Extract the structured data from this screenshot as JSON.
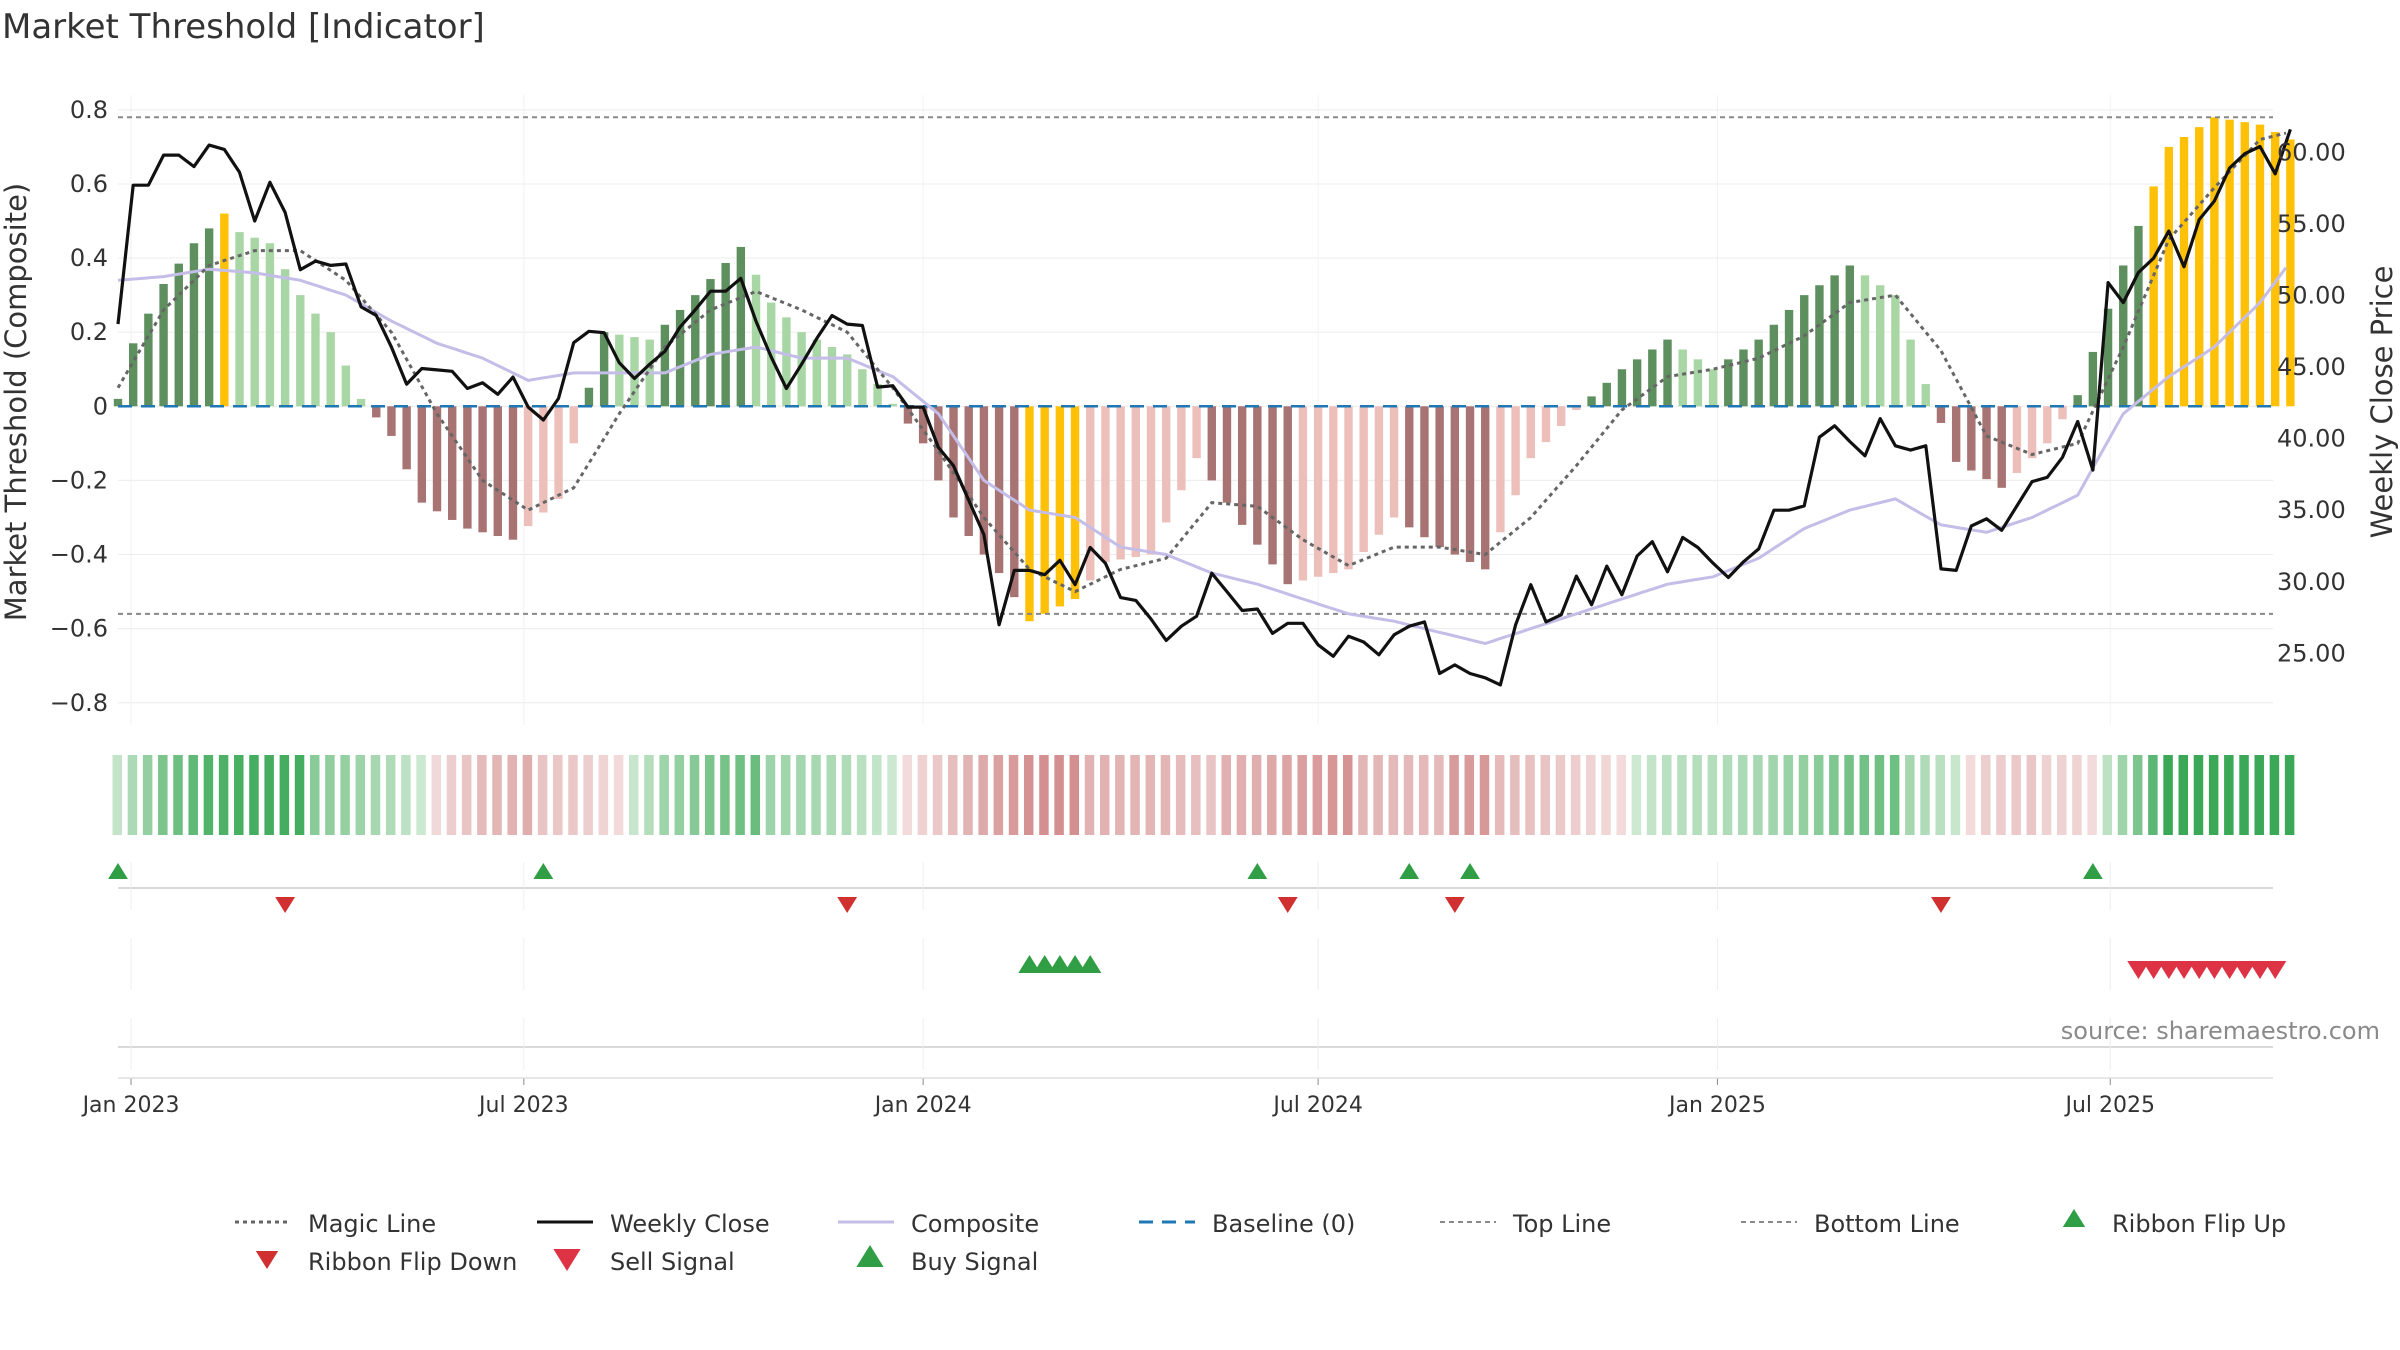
{
  "chart_data": {
    "type": "line",
    "title": "Market Threshold [Indicator]",
    "ylabel": "Market Threshold (Composite)",
    "y2label": "Weekly Close Price",
    "ylim": [
      -0.86,
      0.84
    ],
    "y2lim": [
      20.0,
      64.0
    ],
    "yticks": [
      0.8,
      0.6,
      0.4,
      0.2,
      0,
      -0.2,
      -0.4,
      -0.6,
      -0.8
    ],
    "ytick_labels": [
      "0.8",
      "0.6",
      "0.4",
      "0.2",
      "0",
      "−0.2",
      "−0.4",
      "−0.6",
      "−0.8"
    ],
    "y2ticks": [
      60,
      55,
      50,
      45,
      40,
      35,
      30,
      25
    ],
    "y2tick_labels": [
      "60.00",
      "55.00",
      "50.00",
      "45.00",
      "40.00",
      "35.00",
      "30.00",
      "25.00"
    ],
    "xrange": [
      "2022-12-26",
      "2025-09-14"
    ],
    "xticks": [
      "2023-01-01",
      "2023-07-01",
      "2024-01-01",
      "2024-07-01",
      "2025-01-01",
      "2025-07-01"
    ],
    "xtick_labels": [
      "Jan 2023",
      "Jul 2023",
      "Jan 2024",
      "Jul 2024",
      "Jan 2025",
      "Jul 2025"
    ],
    "top_line": 0.78,
    "bottom_line": -0.56,
    "weekly_close_anchors": [
      [
        "2022-12-26",
        48.0
      ],
      [
        "2023-01-02",
        57.7
      ],
      [
        "2023-01-09",
        57.7
      ],
      [
        "2023-01-16",
        59.8
      ],
      [
        "2023-01-23",
        59.8
      ],
      [
        "2023-01-30",
        59.0
      ],
      [
        "2023-02-06",
        60.5
      ],
      [
        "2023-02-13",
        60.2
      ],
      [
        "2023-02-20",
        58.6
      ],
      [
        "2023-02-27",
        55.2
      ],
      [
        "2023-03-06",
        57.9
      ],
      [
        "2023-03-13",
        55.8
      ],
      [
        "2023-03-20",
        51.8
      ],
      [
        "2023-03-27",
        52.4
      ],
      [
        "2023-04-03",
        52.1
      ],
      [
        "2023-04-10",
        52.2
      ],
      [
        "2023-04-17",
        49.2
      ],
      [
        "2023-04-24",
        48.6
      ],
      [
        "2023-05-01",
        46.4
      ],
      [
        "2023-05-08",
        43.8
      ],
      [
        "2023-05-15",
        44.9
      ],
      [
        "2023-05-22",
        44.8
      ],
      [
        "2023-05-29",
        44.7
      ],
      [
        "2023-06-05",
        43.5
      ],
      [
        "2023-06-12",
        43.9
      ],
      [
        "2023-06-19",
        43.1
      ],
      [
        "2023-06-26",
        44.3
      ],
      [
        "2023-07-03",
        42.2
      ],
      [
        "2023-07-10",
        41.3
      ],
      [
        "2023-07-17",
        42.8
      ],
      [
        "2023-07-24",
        46.7
      ],
      [
        "2023-07-31",
        47.5
      ],
      [
        "2023-08-07",
        47.4
      ],
      [
        "2023-08-14",
        45.3
      ],
      [
        "2023-08-21",
        44.2
      ],
      [
        "2023-08-28",
        45.2
      ],
      [
        "2023-09-04",
        46.1
      ],
      [
        "2023-09-11",
        47.8
      ],
      [
        "2023-09-18",
        49.0
      ],
      [
        "2023-09-25",
        50.3
      ],
      [
        "2023-10-02",
        50.3
      ],
      [
        "2023-10-09",
        51.2
      ],
      [
        "2023-10-16",
        48.2
      ],
      [
        "2023-10-23",
        45.7
      ],
      [
        "2023-10-30",
        43.5
      ],
      [
        "2023-11-06",
        45.2
      ],
      [
        "2023-11-13",
        47.0
      ],
      [
        "2023-11-20",
        48.6
      ],
      [
        "2023-11-27",
        48.0
      ],
      [
        "2023-12-04",
        47.9
      ],
      [
        "2023-12-11",
        43.6
      ],
      [
        "2023-12-18",
        43.7
      ],
      [
        "2023-12-25",
        42.2
      ],
      [
        "2024-01-01",
        42.2
      ],
      [
        "2024-01-08",
        39.4
      ],
      [
        "2024-01-15",
        38.1
      ],
      [
        "2024-01-22",
        35.7
      ],
      [
        "2024-01-29",
        33.3
      ],
      [
        "2024-02-05",
        27.0
      ],
      [
        "2024-02-12",
        30.8
      ],
      [
        "2024-02-19",
        30.8
      ],
      [
        "2024-02-26",
        30.5
      ],
      [
        "2024-03-04",
        31.5
      ],
      [
        "2024-03-11",
        29.8
      ],
      [
        "2024-03-18",
        32.4
      ],
      [
        "2024-03-25",
        31.3
      ],
      [
        "2024-04-01",
        28.9
      ],
      [
        "2024-04-08",
        28.7
      ],
      [
        "2024-04-15",
        27.4
      ],
      [
        "2024-04-22",
        25.9
      ],
      [
        "2024-04-29",
        26.9
      ],
      [
        "2024-05-06",
        27.6
      ],
      [
        "2024-05-13",
        30.6
      ],
      [
        "2024-05-20",
        29.3
      ],
      [
        "2024-05-27",
        28.0
      ],
      [
        "2024-06-03",
        28.1
      ],
      [
        "2024-06-10",
        26.4
      ],
      [
        "2024-06-17",
        27.1
      ],
      [
        "2024-06-24",
        27.1
      ],
      [
        "2024-07-01",
        25.6
      ],
      [
        "2024-07-08",
        24.8
      ],
      [
        "2024-07-15",
        26.2
      ],
      [
        "2024-07-22",
        25.8
      ],
      [
        "2024-07-29",
        24.9
      ],
      [
        "2024-08-05",
        26.3
      ],
      [
        "2024-08-12",
        26.9
      ],
      [
        "2024-08-19",
        27.2
      ],
      [
        "2024-08-26",
        23.6
      ],
      [
        "2024-09-02",
        24.2
      ],
      [
        "2024-09-09",
        23.6
      ],
      [
        "2024-09-16",
        23.3
      ],
      [
        "2024-09-23",
        22.8
      ],
      [
        "2024-09-30",
        27.0
      ],
      [
        "2024-10-07",
        29.8
      ],
      [
        "2024-10-14",
        27.2
      ],
      [
        "2024-10-21",
        27.7
      ],
      [
        "2024-10-28",
        30.4
      ],
      [
        "2024-11-04",
        28.4
      ],
      [
        "2024-11-11",
        31.1
      ],
      [
        "2024-11-18",
        29.1
      ],
      [
        "2024-11-25",
        31.8
      ],
      [
        "2024-12-02",
        32.8
      ],
      [
        "2024-12-09",
        30.7
      ],
      [
        "2024-12-16",
        33.1
      ],
      [
        "2024-12-23",
        32.4
      ],
      [
        "2024-12-30",
        31.3
      ],
      [
        "2025-01-06",
        30.3
      ],
      [
        "2025-01-13",
        31.4
      ],
      [
        "2025-01-20",
        32.3
      ],
      [
        "2025-01-27",
        35.0
      ],
      [
        "2025-02-03",
        35.0
      ],
      [
        "2025-02-10",
        35.3
      ],
      [
        "2025-02-17",
        40.1
      ],
      [
        "2025-02-24",
        40.9
      ],
      [
        "2025-03-03",
        39.8
      ],
      [
        "2025-03-10",
        38.8
      ],
      [
        "2025-03-17",
        41.4
      ],
      [
        "2025-03-24",
        39.5
      ],
      [
        "2025-03-31",
        39.2
      ],
      [
        "2025-04-07",
        39.5
      ],
      [
        "2025-04-14",
        30.9
      ],
      [
        "2025-04-21",
        30.8
      ],
      [
        "2025-04-28",
        33.9
      ],
      [
        "2025-05-05",
        34.4
      ],
      [
        "2025-05-12",
        33.6
      ],
      [
        "2025-05-19",
        35.3
      ],
      [
        "2025-05-26",
        37.0
      ],
      [
        "2025-06-02",
        37.3
      ],
      [
        "2025-06-09",
        38.7
      ],
      [
        "2025-06-16",
        41.2
      ],
      [
        "2025-06-23",
        37.8
      ],
      [
        "2025-06-30",
        50.9
      ],
      [
        "2025-07-07",
        49.5
      ],
      [
        "2025-07-14",
        51.6
      ],
      [
        "2025-07-21",
        52.6
      ],
      [
        "2025-07-28",
        54.5
      ],
      [
        "2025-08-04",
        52.0
      ],
      [
        "2025-08-11",
        55.3
      ],
      [
        "2025-08-18",
        56.6
      ],
      [
        "2025-08-25",
        58.9
      ],
      [
        "2025-09-01",
        59.9
      ],
      [
        "2025-09-08",
        60.4
      ],
      [
        "2025-09-15",
        58.5
      ],
      [
        "2025-09-22",
        61.6
      ]
    ],
    "composite_anchors": [
      [
        "2022-12-26",
        0.34
      ],
      [
        "2023-01-16",
        0.35
      ],
      [
        "2023-02-06",
        0.37
      ],
      [
        "2023-02-27",
        0.36
      ],
      [
        "2023-03-20",
        0.34
      ],
      [
        "2023-04-10",
        0.3
      ],
      [
        "2023-05-01",
        0.23
      ],
      [
        "2023-05-22",
        0.17
      ],
      [
        "2023-06-12",
        0.13
      ],
      [
        "2023-07-03",
        0.07
      ],
      [
        "2023-07-24",
        0.09
      ],
      [
        "2023-08-14",
        0.09
      ],
      [
        "2023-09-04",
        0.09
      ],
      [
        "2023-09-25",
        0.14
      ],
      [
        "2023-10-16",
        0.16
      ],
      [
        "2023-11-06",
        0.13
      ],
      [
        "2023-11-27",
        0.13
      ],
      [
        "2023-12-18",
        0.08
      ],
      [
        "2024-01-08",
        -0.02
      ],
      [
        "2024-01-29",
        -0.2
      ],
      [
        "2024-02-19",
        -0.28
      ],
      [
        "2024-03-11",
        -0.3
      ],
      [
        "2024-04-01",
        -0.38
      ],
      [
        "2024-04-22",
        -0.4
      ],
      [
        "2024-05-13",
        -0.45
      ],
      [
        "2024-06-03",
        -0.48
      ],
      [
        "2024-06-24",
        -0.52
      ],
      [
        "2024-07-15",
        -0.56
      ],
      [
        "2024-08-05",
        -0.58
      ],
      [
        "2024-08-26",
        -0.61
      ],
      [
        "2024-09-16",
        -0.64
      ],
      [
        "2024-10-07",
        -0.6
      ],
      [
        "2024-10-28",
        -0.56
      ],
      [
        "2024-11-18",
        -0.52
      ],
      [
        "2024-12-09",
        -0.48
      ],
      [
        "2024-12-30",
        -0.46
      ],
      [
        "2025-01-20",
        -0.41
      ],
      [
        "2025-02-10",
        -0.33
      ],
      [
        "2025-03-03",
        -0.28
      ],
      [
        "2025-03-24",
        -0.25
      ],
      [
        "2025-04-14",
        -0.32
      ],
      [
        "2025-05-05",
        -0.34
      ],
      [
        "2025-05-26",
        -0.3
      ],
      [
        "2025-06-16",
        -0.24
      ],
      [
        "2025-07-07",
        -0.02
      ],
      [
        "2025-07-28",
        0.08
      ],
      [
        "2025-08-18",
        0.16
      ],
      [
        "2025-09-08",
        0.28
      ],
      [
        "2025-09-22",
        0.39
      ]
    ],
    "magic_line_anchors": [
      [
        "2022-12-26",
        0.05
      ],
      [
        "2023-01-16",
        0.26
      ],
      [
        "2023-02-06",
        0.38
      ],
      [
        "2023-02-27",
        0.42
      ],
      [
        "2023-03-20",
        0.42
      ],
      [
        "2023-04-10",
        0.34
      ],
      [
        "2023-05-01",
        0.2
      ],
      [
        "2023-05-22",
        -0.02
      ],
      [
        "2023-06-12",
        -0.2
      ],
      [
        "2023-07-03",
        -0.28
      ],
      [
        "2023-07-24",
        -0.22
      ],
      [
        "2023-08-14",
        -0.02
      ],
      [
        "2023-09-04",
        0.16
      ],
      [
        "2023-09-25",
        0.26
      ],
      [
        "2023-10-16",
        0.31
      ],
      [
        "2023-11-06",
        0.26
      ],
      [
        "2023-11-27",
        0.2
      ],
      [
        "2023-12-18",
        0.05
      ],
      [
        "2024-01-08",
        -0.12
      ],
      [
        "2024-01-29",
        -0.3
      ],
      [
        "2024-02-19",
        -0.44
      ],
      [
        "2024-03-11",
        -0.5
      ],
      [
        "2024-04-01",
        -0.44
      ],
      [
        "2024-04-22",
        -0.41
      ],
      [
        "2024-05-13",
        -0.26
      ],
      [
        "2024-06-03",
        -0.27
      ],
      [
        "2024-06-24",
        -0.36
      ],
      [
        "2024-07-15",
        -0.43
      ],
      [
        "2024-08-05",
        -0.38
      ],
      [
        "2024-08-26",
        -0.38
      ],
      [
        "2024-09-16",
        -0.4
      ],
      [
        "2024-10-07",
        -0.3
      ],
      [
        "2024-10-28",
        -0.16
      ],
      [
        "2024-11-18",
        -0.01
      ],
      [
        "2024-12-09",
        0.08
      ],
      [
        "2024-12-30",
        0.1
      ],
      [
        "2025-01-20",
        0.13
      ],
      [
        "2025-02-10",
        0.19
      ],
      [
        "2025-03-03",
        0.28
      ],
      [
        "2025-03-24",
        0.3
      ],
      [
        "2025-04-14",
        0.15
      ],
      [
        "2025-05-05",
        -0.08
      ],
      [
        "2025-05-26",
        -0.13
      ],
      [
        "2025-06-16",
        -0.1
      ],
      [
        "2025-07-07",
        0.16
      ],
      [
        "2025-07-28",
        0.45
      ],
      [
        "2025-08-18",
        0.59
      ],
      [
        "2025-09-08",
        0.72
      ],
      [
        "2025-09-22",
        0.74
      ]
    ],
    "histogram_anchors": [
      [
        "2022-12-26",
        0.02
      ],
      [
        "2023-01-02",
        0.17
      ],
      [
        "2023-01-16",
        0.33
      ],
      [
        "2023-01-30",
        0.44
      ],
      [
        "2023-02-13",
        0.52
      ],
      [
        "2023-02-20",
        0.47
      ],
      [
        "2023-03-06",
        0.44
      ],
      [
        "2023-03-20",
        0.3
      ],
      [
        "2023-04-03",
        0.2
      ],
      [
        "2023-04-17",
        0.02
      ],
      [
        "2023-05-01",
        -0.08
      ],
      [
        "2023-05-15",
        -0.26
      ],
      [
        "2023-06-05",
        -0.33
      ],
      [
        "2023-06-26",
        -0.36
      ],
      [
        "2023-07-17",
        -0.25
      ],
      [
        "2023-07-24",
        -0.1
      ],
      [
        "2023-08-07",
        0.2
      ],
      [
        "2023-08-28",
        0.18
      ],
      [
        "2023-09-18",
        0.3
      ],
      [
        "2023-10-09",
        0.43
      ],
      [
        "2023-10-23",
        0.28
      ],
      [
        "2023-11-06",
        0.2
      ],
      [
        "2023-11-27",
        0.14
      ],
      [
        "2023-12-11",
        0.06
      ],
      [
        "2024-01-01",
        -0.1
      ],
      [
        "2024-01-15",
        -0.3
      ],
      [
        "2024-02-05",
        -0.45
      ],
      [
        "2024-02-19",
        -0.58
      ],
      [
        "2024-03-11",
        -0.52
      ],
      [
        "2024-03-25",
        -0.42
      ],
      [
        "2024-04-15",
        -0.4
      ],
      [
        "2024-05-06",
        -0.14
      ],
      [
        "2024-05-27",
        -0.32
      ],
      [
        "2024-06-17",
        -0.48
      ],
      [
        "2024-07-15",
        -0.44
      ],
      [
        "2024-08-05",
        -0.3
      ],
      [
        "2024-08-26",
        -0.38
      ],
      [
        "2024-09-16",
        -0.44
      ],
      [
        "2024-10-07",
        -0.14
      ],
      [
        "2024-10-28",
        -0.01
      ],
      [
        "2024-11-18",
        0.1
      ],
      [
        "2024-12-09",
        0.18
      ],
      [
        "2024-12-30",
        0.1
      ],
      [
        "2025-01-20",
        0.18
      ],
      [
        "2025-02-10",
        0.3
      ],
      [
        "2025-03-03",
        0.38
      ],
      [
        "2025-03-24",
        0.3
      ],
      [
        "2025-04-07",
        0.06
      ],
      [
        "2025-04-21",
        -0.15
      ],
      [
        "2025-05-12",
        -0.22
      ],
      [
        "2025-06-02",
        -0.1
      ],
      [
        "2025-06-16",
        0.03
      ],
      [
        "2025-07-07",
        0.38
      ],
      [
        "2025-07-28",
        0.7
      ],
      [
        "2025-08-18",
        0.78
      ],
      [
        "2025-09-08",
        0.76
      ],
      [
        "2025-09-22",
        0.72
      ]
    ],
    "histogram_extreme_threshold": 0.52,
    "ribbon_flip_up": [
      "2022-12-26",
      "2023-07-10",
      "2024-06-03",
      "2024-08-12",
      "2024-09-09",
      "2025-06-23"
    ],
    "ribbon_flip_down": [
      "2023-03-13",
      "2023-11-27",
      "2024-06-17",
      "2024-09-02",
      "2025-04-14"
    ],
    "buy_signals": [
      "2024-02-19",
      "2024-02-26",
      "2024-03-04",
      "2024-03-11",
      "2024-03-18"
    ],
    "sell_signals": [
      "2025-07-14",
      "2025-07-21",
      "2025-07-28",
      "2025-08-04",
      "2025-08-11",
      "2025-08-18",
      "2025-08-25",
      "2025-09-01",
      "2025-09-08",
      "2025-09-15"
    ],
    "colors": {
      "weekly_close": "#111111",
      "composite": "#c4bde8",
      "magic_line": "#666666",
      "baseline": "#1f77b4",
      "top_bottom_line": "#888888",
      "bar_pos_strong": "#5e8f5e",
      "bar_pos_weak": "#a9d6a5",
      "bar_neg_strong": "#a87373",
      "bar_neg_weak": "#edbfbb",
      "bar_extreme": "#ffc107",
      "ribbon_pos_strong": "#3aa857",
      "ribbon_pos_weak": "#d5ecd8",
      "ribbon_neg_strong": "#d49090",
      "ribbon_neg_weak": "#f3dcdc",
      "flip_up": "#2f9e44",
      "flip_down": "#d03030",
      "buy": "#2f9e44",
      "sell": "#dd3344"
    },
    "legend": [
      {
        "key": "magic",
        "label": "Magic Line"
      },
      {
        "key": "close",
        "label": "Weekly Close"
      },
      {
        "key": "composite",
        "label": "Composite"
      },
      {
        "key": "baseline",
        "label": "Baseline (0)"
      },
      {
        "key": "top",
        "label": "Top Line"
      },
      {
        "key": "bottom",
        "label": "Bottom Line"
      },
      {
        "key": "flipup",
        "label": "Ribbon Flip Up"
      },
      {
        "key": "flipdown",
        "label": "Ribbon Flip Down"
      },
      {
        "key": "sell",
        "label": "Sell Signal"
      },
      {
        "key": "buy",
        "label": "Buy Signal"
      }
    ],
    "source_note": "source: sharemaestro.com"
  }
}
